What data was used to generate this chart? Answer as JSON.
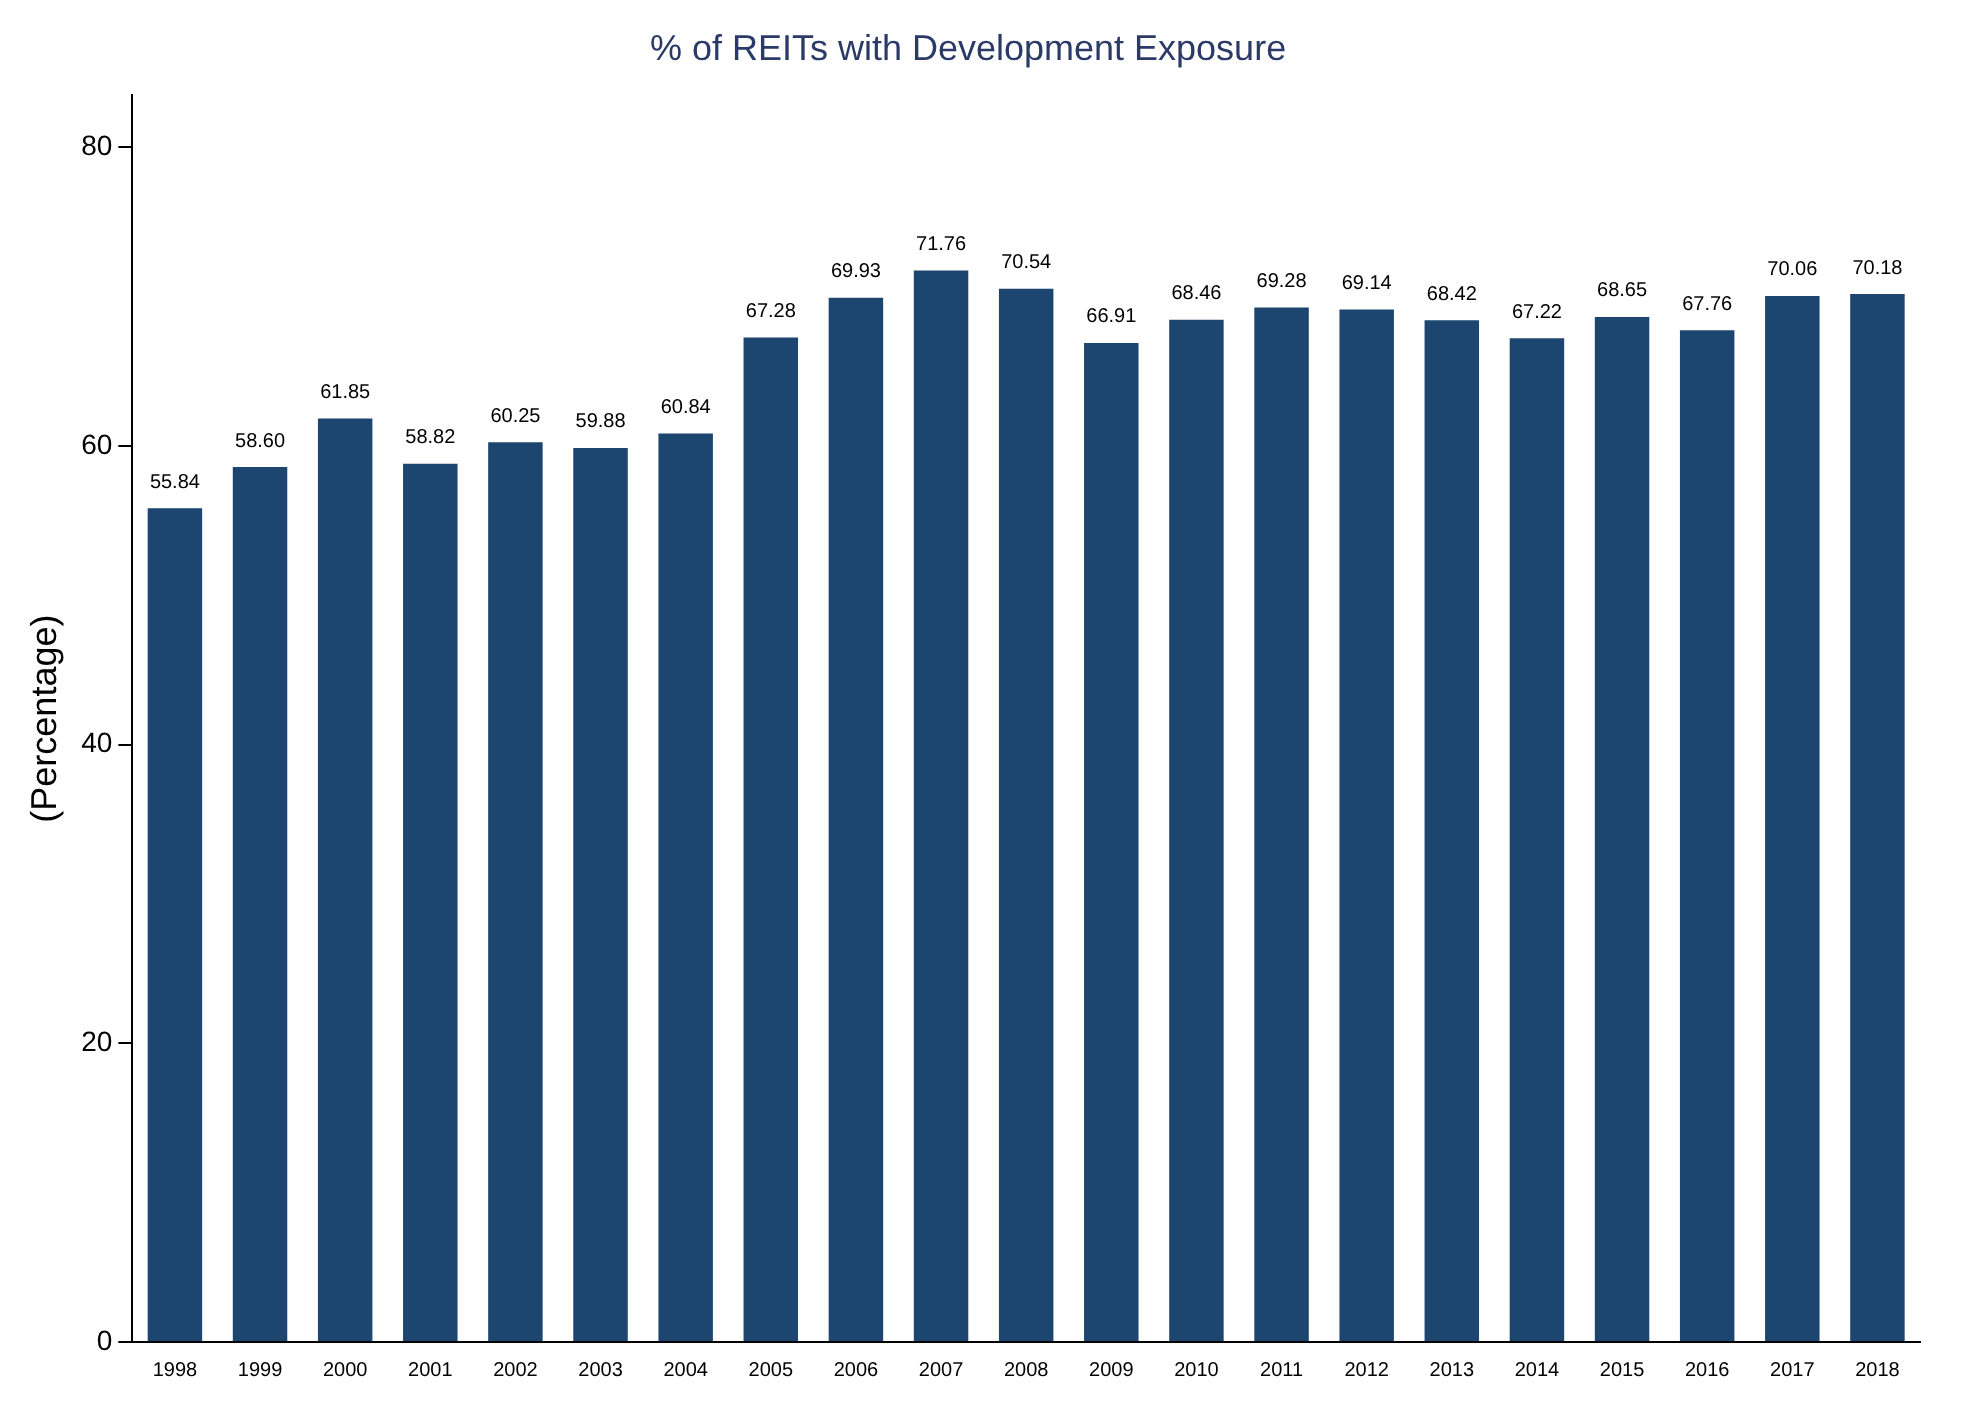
{
  "chart_data": {
    "type": "bar",
    "title": "% of REITs with Development Exposure",
    "ylabel": "(Percentage)",
    "categories": [
      "1998",
      "1999",
      "2000",
      "2001",
      "2002",
      "2003",
      "2004",
      "2005",
      "2006",
      "2007",
      "2008",
      "2009",
      "2010",
      "2011",
      "2012",
      "2013",
      "2014",
      "2015",
      "2016",
      "2017",
      "2018"
    ],
    "values": [
      55.84,
      58.6,
      61.85,
      58.82,
      60.25,
      59.88,
      60.84,
      67.28,
      69.93,
      71.76,
      70.54,
      66.91,
      68.46,
      69.28,
      69.14,
      68.42,
      67.22,
      68.65,
      67.76,
      70.06,
      70.18
    ],
    "value_labels": [
      "55.84",
      "58.60",
      "61.85",
      "58.82",
      "60.25",
      "59.88",
      "60.84",
      "67.28",
      "69.93",
      "71.76",
      "70.54",
      "66.91",
      "68.46",
      "69.28",
      "69.14",
      "68.42",
      "67.22",
      "68.65",
      "67.76",
      "70.06",
      "70.18"
    ],
    "color": "#1c4670",
    "ylim": [
      0,
      83.5
    ],
    "yticks": [
      0,
      20,
      40,
      60,
      80
    ],
    "grid": false,
    "legend": false
  }
}
